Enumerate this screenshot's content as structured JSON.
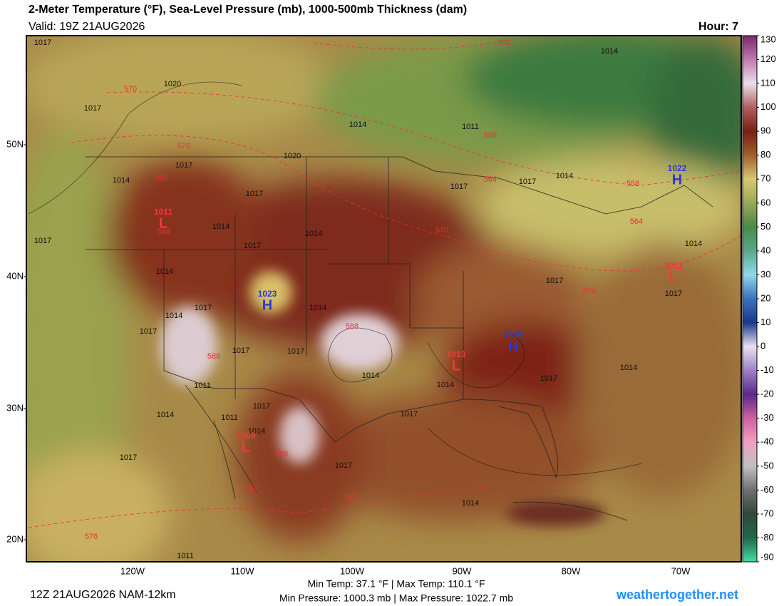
{
  "header": {
    "title": "2-Meter Temperature (°F), Sea-Level Pressure (mb), 1000-500mb Thickness (dam)",
    "valid": "Valid: 19Z 21AUG2026",
    "hour": "Hour: 7"
  },
  "map": {
    "lat_labels": [
      "50N",
      "40N",
      "30N",
      "20N"
    ],
    "lon_labels": [
      "120W",
      "110W",
      "100W",
      "90W",
      "80W",
      "70W"
    ],
    "isobar_labels": [
      1017,
      1020,
      1017,
      1014,
      1017,
      1020,
      1017,
      1014,
      1014,
      1017,
      1014,
      1017,
      1014,
      1017,
      1017,
      1017,
      1017,
      1014,
      1014,
      1011,
      1011,
      1014,
      1017,
      1014,
      1017,
      1017,
      1014,
      1017,
      1014,
      1011,
      1011,
      1014,
      1014,
      1017,
      1014,
      1017,
      1014,
      1017,
      1017,
      1014,
      1017
    ],
    "thickness_labels": [
      552,
      570,
      576,
      582,
      588,
      558,
      564,
      558,
      564,
      570,
      570,
      588,
      588,
      588,
      582,
      588,
      576
    ],
    "pressure_centers": [
      {
        "letter": "H",
        "value": 1023
      },
      {
        "letter": "H",
        "value": 1015
      },
      {
        "letter": "H",
        "value": 1022
      },
      {
        "letter": "L",
        "value": 1011
      },
      {
        "letter": "L",
        "value": 1013
      },
      {
        "letter": "L",
        "value": 1009
      },
      {
        "letter": "L",
        "value": 1011
      }
    ]
  },
  "colorbar": {
    "ticks": [
      130,
      120,
      110,
      100,
      90,
      80,
      70,
      60,
      50,
      40,
      30,
      20,
      10,
      0,
      -10,
      -20,
      -30,
      -40,
      -50,
      -60,
      -70,
      -80,
      -90
    ],
    "colors": [
      "#7a2a6a",
      "#c07ab0",
      "#eadfe8",
      "#b06060",
      "#7a1e14",
      "#a06030",
      "#d8c870",
      "#98a858",
      "#4a8a48",
      "#5aa88a",
      "#90d8e8",
      "#3a70c0",
      "#1a3a8a",
      "#e8e0f0",
      "#a080c8",
      "#5a2a8a",
      "#d060a0",
      "#f0a0c0",
      "#c0c0c0",
      "#707070",
      "#304838",
      "#20684a",
      "#40e0a0"
    ]
  },
  "footer": {
    "temp_range": "Min Temp:  37.1 °F | Max Temp: 110.1 °F",
    "pressure_range": "Min Pressure: 1000.3 mb | Max Pressure: 1022.7 mb",
    "run": "12Z 21AUG2026 NAM-12km",
    "site": "weathertogether.net"
  }
}
